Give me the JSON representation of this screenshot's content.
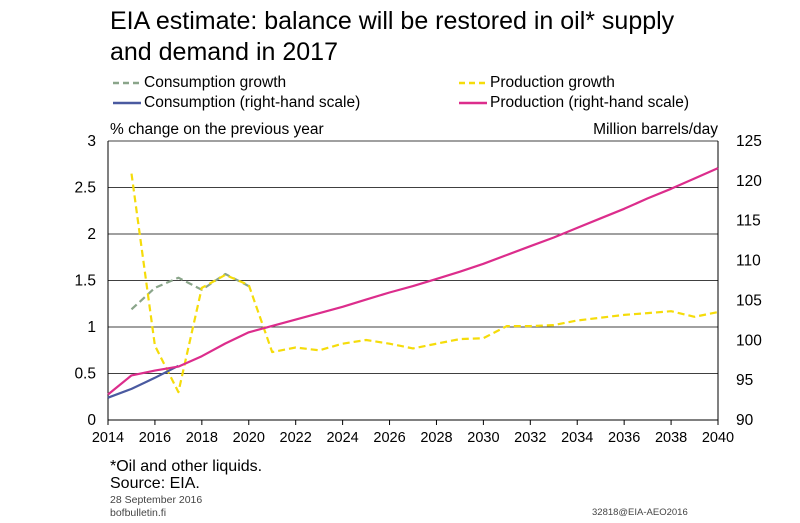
{
  "title_line1": "EIA estimate: balance will be restored in oil* supply",
  "title_line2": "and demand in 2017",
  "legend": {
    "consumption_growth": "Consumption growth",
    "production_growth": "Production growth",
    "consumption": "Consumption (right-hand scale)",
    "production": "Production (right-hand scale)"
  },
  "left_axis_label": "% change on the previous year",
  "right_axis_label": "Million barrels/day",
  "footnote": "*Oil and other liquids.",
  "source": "Source: EIA.",
  "date": "28 September 2016",
  "site": "bofbulletin.fi",
  "code": "32818@EIA-AEO2016",
  "colors": {
    "consumption_growth": "#8aa58a",
    "production_growth": "#f5dc0a",
    "consumption": "#4a5aa0",
    "production": "#dc2d8c",
    "grid": "#000000"
  },
  "chart_data": {
    "type": "line",
    "x_ticks": [
      "2014",
      "2016",
      "2018",
      "2020",
      "2022",
      "2024",
      "2026",
      "2028",
      "2030",
      "2032",
      "2034",
      "2036",
      "2038",
      "2040"
    ],
    "left_ticks": [
      "0",
      "0.5",
      "1",
      "1.5",
      "2",
      "2.5",
      "3"
    ],
    "right_ticks": [
      "90",
      "95",
      "100",
      "105",
      "110",
      "115",
      "120",
      "125"
    ],
    "xlim": [
      2014,
      2040
    ],
    "ylim_left": [
      0,
      3
    ],
    "ylim_right": [
      90,
      125
    ],
    "grid": "horizontal",
    "series": [
      {
        "name": "Consumption growth",
        "axis": "left",
        "style": "dashed",
        "color": "#8aa58a",
        "x": [
          2015,
          2016,
          2017,
          2018,
          2019,
          2020
        ],
        "values": [
          1.19,
          1.42,
          1.53,
          1.4,
          1.57,
          1.44
        ]
      },
      {
        "name": "Production growth",
        "axis": "left",
        "style": "dashed",
        "color": "#f5dc0a",
        "x": [
          2015,
          2016,
          2017,
          2018,
          2019,
          2020,
          2021,
          2022,
          2023,
          2024,
          2025,
          2026,
          2027,
          2028,
          2029,
          2030,
          2031,
          2032,
          2033,
          2034,
          2035,
          2036,
          2037,
          2038,
          2039,
          2040
        ],
        "values": [
          2.65,
          0.8,
          0.3,
          1.42,
          1.56,
          1.45,
          0.73,
          0.78,
          0.75,
          0.82,
          0.86,
          0.82,
          0.77,
          0.82,
          0.87,
          0.88,
          1.01,
          1.01,
          1.02,
          1.07,
          1.1,
          1.13,
          1.15,
          1.17,
          1.11,
          1.16
        ]
      },
      {
        "name": "Consumption (right-hand scale)",
        "axis": "right",
        "style": "solid",
        "color": "#4a5aa0",
        "x": [
          2014,
          2015,
          2016,
          2017
        ],
        "values": [
          92.8,
          93.9,
          95.3,
          96.8
        ]
      },
      {
        "name": "Production (right-hand scale)",
        "axis": "right",
        "style": "solid",
        "color": "#dc2d8c",
        "x": [
          2014,
          2015,
          2016,
          2017,
          2018,
          2019,
          2020,
          2021,
          2022,
          2023,
          2024,
          2025,
          2026,
          2027,
          2028,
          2029,
          2030,
          2031,
          2032,
          2033,
          2034,
          2035,
          2036,
          2037,
          2038,
          2039,
          2040
        ],
        "values": [
          93.2,
          95.6,
          96.2,
          96.7,
          98.0,
          99.6,
          101.0,
          101.8,
          102.6,
          103.4,
          104.2,
          105.1,
          106.0,
          106.8,
          107.7,
          108.6,
          109.6,
          110.7,
          111.8,
          112.9,
          114.1,
          115.3,
          116.5,
          117.8,
          119.0,
          120.3,
          121.6
        ]
      }
    ]
  }
}
